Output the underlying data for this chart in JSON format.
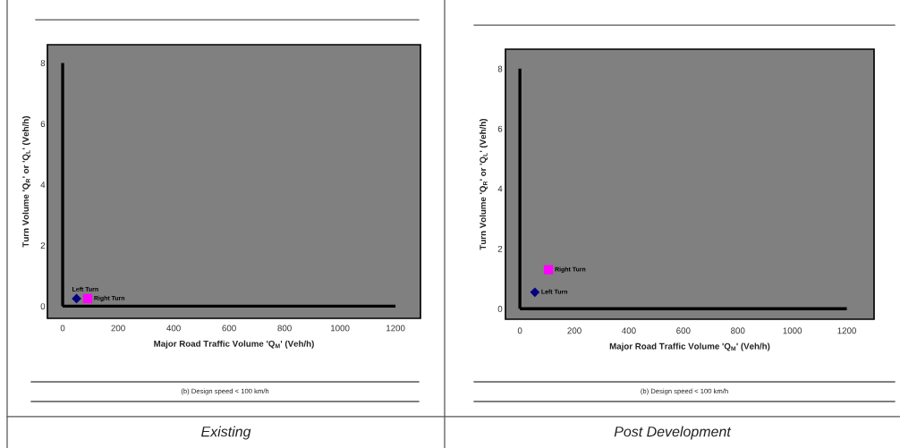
{
  "chart_data": [
    {
      "type": "scatter",
      "title": "Existing",
      "xlabel": "Major Road Traffic Volume 'Q$_{M}$' (Veh/h)",
      "ylabel": "Turn Volume 'Q$_{R}$' or 'Q$_{L}$' (Veh/h)",
      "xlim": [
        -55,
        1290
      ],
      "ylim": [
        -0.4,
        8.6
      ],
      "xticks": [
        0,
        200,
        400,
        600,
        800,
        1000,
        1200
      ],
      "yticks": [
        0,
        2,
        4,
        6,
        8
      ],
      "series": [
        {
          "name": "Left Turn",
          "color": "#000080",
          "marker": "diamond",
          "x": [
            50
          ],
          "values": [
            0.25
          ]
        },
        {
          "name": "Right Turn",
          "color": "#ff00ff",
          "marker": "square",
          "x": [
            90
          ],
          "values": [
            0.25
          ]
        }
      ],
      "annotations": [
        "(b) Design speed < 100 km/h"
      ]
    },
    {
      "type": "scatter",
      "title": "Post Development",
      "xlabel": "Major Road Traffic Volume 'Q$_{M}$' (Veh/h)",
      "ylabel": "Turn Volume 'Q$_{R}$' or 'Q$_{L}$' (Veh/h)",
      "xlim": [
        -53,
        1300
      ],
      "ylim": [
        -0.35,
        8.65
      ],
      "xticks": [
        0,
        200,
        400,
        600,
        800,
        1000,
        1200
      ],
      "yticks": [
        0,
        2,
        4,
        6,
        8
      ],
      "series": [
        {
          "name": "Left Turn",
          "color": "#000080",
          "marker": "diamond",
          "x": [
            55
          ],
          "values": [
            0.55
          ]
        },
        {
          "name": "Right Turn",
          "color": "#ff00ff",
          "marker": "square",
          "x": [
            105
          ],
          "values": [
            1.3
          ]
        }
      ],
      "annotations": [
        "(b) Design speed < 100 km/h"
      ]
    }
  ]
}
